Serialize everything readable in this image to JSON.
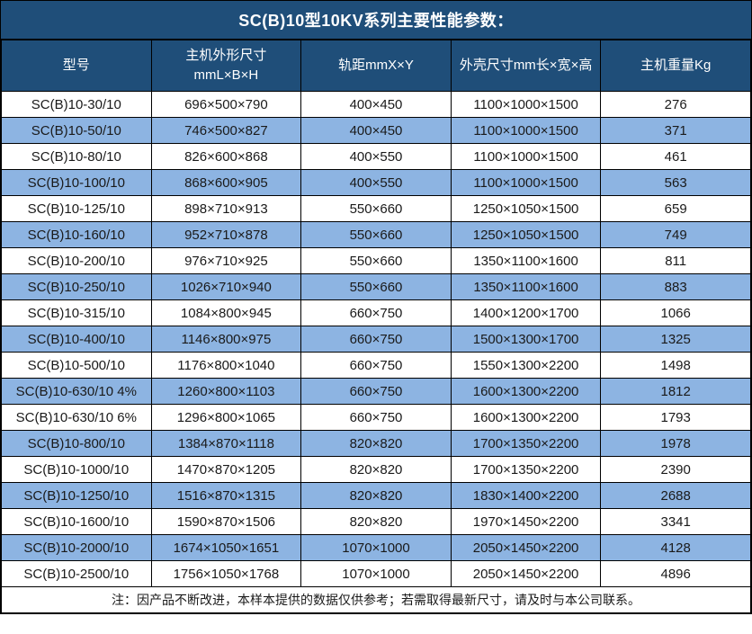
{
  "title": "SC(B)10型10KV系列主要性能参数：",
  "colors": {
    "header_bg": "#1f4e79",
    "header_text": "#ffffff",
    "alt_row_bg": "#8db4e2",
    "border": "#000000",
    "body_text": "#1a1a1a"
  },
  "table": {
    "headers": [
      "型号",
      "主机外形尺寸\nmmL×B×H",
      "轨距mmX×Y",
      "外壳尺寸mm长×宽×高",
      "主机重量Kg"
    ],
    "rows": [
      [
        "SC(B)10-30/10",
        "696×500×790",
        "400×450",
        "1100×1000×1500",
        "276"
      ],
      [
        "SC(B)10-50/10",
        "746×500×827",
        "400×450",
        "1100×1000×1500",
        "371"
      ],
      [
        "SC(B)10-80/10",
        "826×600×868",
        "400×550",
        "1100×1000×1500",
        "461"
      ],
      [
        "SC(B)10-100/10",
        "868×600×905",
        "400×550",
        "1100×1000×1500",
        "563"
      ],
      [
        "SC(B)10-125/10",
        "898×710×913",
        "550×660",
        "1250×1050×1500",
        "659"
      ],
      [
        "SC(B)10-160/10",
        "952×710×878",
        "550×660",
        "1250×1050×1500",
        "749"
      ],
      [
        "SC(B)10-200/10",
        "976×710×925",
        "550×660",
        "1350×1100×1600",
        "811"
      ],
      [
        "SC(B)10-250/10",
        "1026×710×940",
        "550×660",
        "1350×1100×1600",
        "883"
      ],
      [
        "SC(B)10-315/10",
        "1084×800×945",
        "660×750",
        "1400×1200×1700",
        "1066"
      ],
      [
        "SC(B)10-400/10",
        "1146×800×975",
        "660×750",
        "1500×1300×1700",
        "1325"
      ],
      [
        "SC(B)10-500/10",
        "1176×800×1040",
        "660×750",
        "1550×1300×2200",
        "1498"
      ],
      [
        "SC(B)10-630/10 4%",
        "1260×800×1103",
        "660×750",
        "1600×1300×2200",
        "1812"
      ],
      [
        "SC(B)10-630/10 6%",
        "1296×800×1065",
        "660×750",
        "1600×1300×2200",
        "1793"
      ],
      [
        "SC(B)10-800/10",
        "1384×870×1118",
        "820×820",
        "1700×1350×2200",
        "1978"
      ],
      [
        "SC(B)10-1000/10",
        "1470×870×1205",
        "820×820",
        "1700×1350×2200",
        "2390"
      ],
      [
        "SC(B)10-1250/10",
        "1516×870×1315",
        "820×820",
        "1830×1400×2200",
        "2688"
      ],
      [
        "SC(B)10-1600/10",
        "1590×870×1506",
        "820×820",
        "1970×1450×2200",
        "3341"
      ],
      [
        "SC(B)10-2000/10",
        "1674×1050×1651",
        "1070×1000",
        "2050×1450×2200",
        "4128"
      ],
      [
        "SC(B)10-2500/10",
        "1756×1050×1768",
        "1070×1000",
        "2050×1450×2200",
        "4896"
      ]
    ]
  },
  "note": "注：因产品不断改进，本样本提供的数据仅供参考；若需取得最新尺寸，请及时与本公司联系。"
}
